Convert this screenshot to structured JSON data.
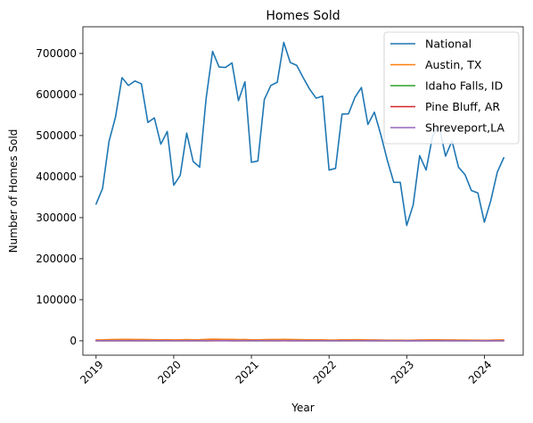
{
  "chart_data": {
    "type": "line",
    "title": "Homes Sold",
    "xlabel": "Year",
    "ylabel": "Number of Homes Sold",
    "xlim": [
      2018.83,
      2024.5
    ],
    "ylim": [
      -35000,
      765000
    ],
    "xticks": [
      2019,
      2020,
      2021,
      2022,
      2023,
      2024
    ],
    "xtick_labels": [
      "2019",
      "2020",
      "2021",
      "2022",
      "2023",
      "2024"
    ],
    "yticks": [
      0,
      100000,
      200000,
      300000,
      400000,
      500000,
      600000,
      700000
    ],
    "ytick_labels": [
      "0",
      "100000",
      "200000",
      "300000",
      "400000",
      "500000",
      "600000",
      "700000"
    ],
    "legend_position": "top-right",
    "grid": false,
    "series": [
      {
        "name": "National",
        "color": "#1f77b4",
        "start_year": 2019,
        "values": [
          333000,
          371000,
          486000,
          545000,
          641000,
          622000,
          633000,
          626000,
          532000,
          543000,
          479000,
          510000,
          379000,
          403000,
          506000,
          437000,
          423000,
          590000,
          705000,
          667000,
          666000,
          677000,
          585000,
          631000,
          435000,
          438000,
          588000,
          622000,
          630000,
          727000,
          678000,
          671000,
          641000,
          613000,
          591000,
          596000,
          416000,
          420000,
          552000,
          553000,
          593000,
          617000,
          527000,
          557000,
          502000,
          440000,
          386000,
          386000,
          281000,
          331000,
          451000,
          416000,
          499000,
          523000,
          450000,
          487000,
          423000,
          405000,
          366000,
          360000,
          289000,
          342000,
          411000,
          446000
        ]
      },
      {
        "name": "Austin, TX",
        "color": "#ff7f0e",
        "start_year": 2019,
        "values": [
          2000,
          2200,
          2900,
          3200,
          3400,
          3500,
          3300,
          3200,
          2800,
          2700,
          2300,
          2600,
          2100,
          2400,
          2800,
          2400,
          2600,
          3600,
          3900,
          3700,
          3500,
          3400,
          3000,
          3300,
          2300,
          2300,
          3000,
          3100,
          3200,
          3400,
          3100,
          2900,
          2700,
          2500,
          2300,
          2400,
          1800,
          1900,
          2500,
          2500,
          2700,
          2600,
          2200,
          2200,
          1900,
          1700,
          1500,
          1600,
          1300,
          1500,
          2000,
          2000,
          2300,
          2300,
          2100,
          2100,
          1900,
          1800,
          1600,
          1700,
          1400,
          1600,
          2000,
          2200
        ]
      },
      {
        "name": "Idaho Falls, ID",
        "color": "#2ca02c",
        "start_year": 2019,
        "values": [
          150,
          160,
          210,
          240,
          270,
          280,
          290,
          280,
          240,
          240,
          200,
          220,
          170,
          190,
          230,
          210,
          220,
          290,
          320,
          300,
          300,
          290,
          250,
          270,
          190,
          190,
          250,
          270,
          280,
          310,
          290,
          280,
          260,
          250,
          230,
          230,
          170,
          170,
          220,
          220,
          240,
          240,
          200,
          210,
          190,
          160,
          140,
          140,
          110,
          130,
          170,
          160,
          190,
          200,
          170,
          180,
          160,
          150,
          140,
          140,
          110,
          130,
          160,
          170
        ]
      },
      {
        "name": "Pine Bluff, AR",
        "color": "#d62728",
        "start_year": 2019,
        "values": [
          60,
          65,
          80,
          85,
          95,
          95,
          100,
          95,
          85,
          85,
          75,
          80,
          60,
          65,
          80,
          70,
          70,
          95,
          110,
          105,
          105,
          105,
          90,
          95,
          70,
          70,
          90,
          95,
          95,
          110,
          105,
          105,
          100,
          95,
          90,
          90,
          65,
          65,
          85,
          85,
          90,
          95,
          80,
          85,
          75,
          70,
          60,
          60,
          45,
          50,
          70,
          65,
          75,
          80,
          70,
          75,
          65,
          60,
          55,
          55,
          45,
          50,
          65,
          70
        ]
      },
      {
        "name": "Shreveport,LA",
        "color": "#9467bd",
        "start_year": 2019,
        "values": [
          300,
          330,
          420,
          460,
          520,
          510,
          520,
          510,
          440,
          450,
          400,
          420,
          320,
          340,
          420,
          370,
          360,
          490,
          580,
          550,
          550,
          560,
          480,
          520,
          360,
          360,
          490,
          510,
          520,
          600,
          560,
          550,
          530,
          500,
          480,
          490,
          340,
          340,
          450,
          450,
          480,
          500,
          430,
          450,
          410,
          360,
          310,
          310,
          230,
          270,
          370,
          340,
          410,
          430,
          370,
          400,
          350,
          330,
          300,
          300,
          240,
          280,
          340,
          360
        ]
      }
    ]
  }
}
